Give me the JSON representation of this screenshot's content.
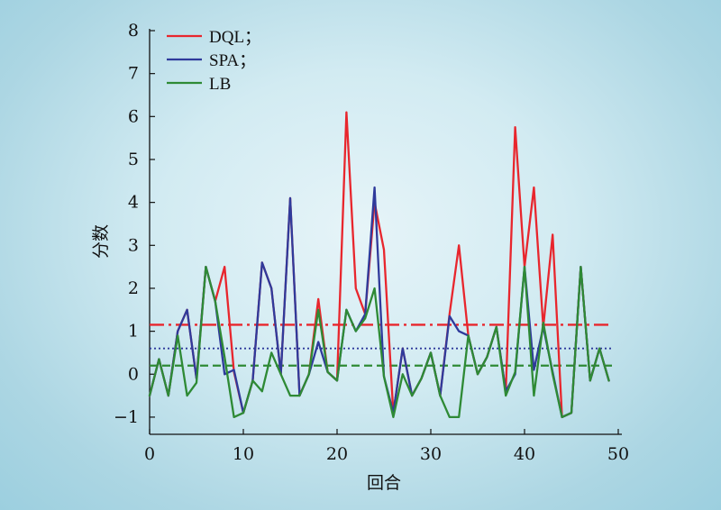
{
  "chart_data": {
    "type": "line",
    "title": "",
    "xlabel": "回合",
    "ylabel": "分数",
    "xlim": [
      0,
      50
    ],
    "ylim": [
      -1.4,
      8
    ],
    "x_ticks": [
      0,
      10,
      20,
      30,
      40,
      50
    ],
    "y_ticks": [
      -1,
      0,
      1,
      2,
      3,
      4,
      5,
      6,
      7,
      8
    ],
    "x": [
      0,
      1,
      2,
      3,
      4,
      5,
      6,
      7,
      8,
      9,
      10,
      11,
      12,
      13,
      14,
      15,
      16,
      17,
      18,
      19,
      20,
      21,
      22,
      23,
      24,
      25,
      26,
      27,
      28,
      29,
      30,
      31,
      32,
      33,
      34,
      35,
      36,
      37,
      38,
      39,
      40,
      41,
      42,
      43,
      44,
      45,
      46,
      47,
      48,
      49
    ],
    "legend_position": "top-left",
    "grid": false,
    "series": [
      {
        "name": "DQL；",
        "color": "#e8262d",
        "values": [
          -0.5,
          0.35,
          -0.5,
          1.0,
          1.5,
          -0.1,
          2.5,
          1.7,
          2.5,
          0.05,
          -0.9,
          -0.15,
          2.6,
          2.0,
          0.0,
          4.1,
          -0.5,
          0.0,
          1.75,
          0.05,
          -0.15,
          6.1,
          2.0,
          1.4,
          4.0,
          2.9,
          -0.9,
          0.6,
          -0.5,
          -0.1,
          0.5,
          -0.5,
          1.4,
          3.0,
          0.9,
          0.0,
          0.4,
          1.1,
          -0.4,
          5.75,
          2.5,
          4.35,
          1.1,
          3.25,
          -1.0,
          -0.9,
          2.5,
          -0.15,
          0.6,
          -0.15
        ],
        "mean": 1.15,
        "mean_style": "dash-dot"
      },
      {
        "name": "SPA；",
        "color": "#2f3a9b",
        "values": [
          -0.5,
          0.35,
          -0.5,
          1.0,
          1.5,
          -0.1,
          2.5,
          1.7,
          0.0,
          0.1,
          -0.9,
          -0.15,
          2.6,
          2.0,
          0.0,
          4.1,
          -0.5,
          0.0,
          0.75,
          0.05,
          -0.15,
          1.5,
          1.0,
          1.4,
          4.35,
          -0.05,
          -0.9,
          0.6,
          -0.5,
          -0.1,
          0.5,
          -0.5,
          1.35,
          1.0,
          0.9,
          0.0,
          0.4,
          1.1,
          -0.4,
          0.0,
          2.5,
          0.1,
          1.1,
          0.05,
          -1.0,
          -0.9,
          2.5,
          -0.15,
          0.6,
          -0.15
        ],
        "mean": 0.6,
        "mean_style": "dotted"
      },
      {
        "name": "LB",
        "color": "#2e8a35",
        "values": [
          -0.5,
          0.35,
          -0.5,
          0.9,
          -0.5,
          -0.2,
          2.5,
          1.7,
          0.4,
          -1.0,
          -0.9,
          -0.15,
          -0.4,
          0.5,
          0.0,
          -0.5,
          -0.5,
          0.0,
          1.5,
          0.05,
          -0.15,
          1.5,
          1.0,
          1.3,
          2.0,
          -0.05,
          -1.0,
          0.0,
          -0.5,
          -0.1,
          0.5,
          -0.5,
          -1.0,
          -1.0,
          0.9,
          0.0,
          0.4,
          1.1,
          -0.5,
          0.05,
          2.5,
          -0.5,
          1.2,
          0.0,
          -1.0,
          -0.9,
          2.5,
          -0.15,
          0.6,
          -0.15
        ],
        "mean": 0.2,
        "mean_style": "dashed"
      }
    ]
  }
}
